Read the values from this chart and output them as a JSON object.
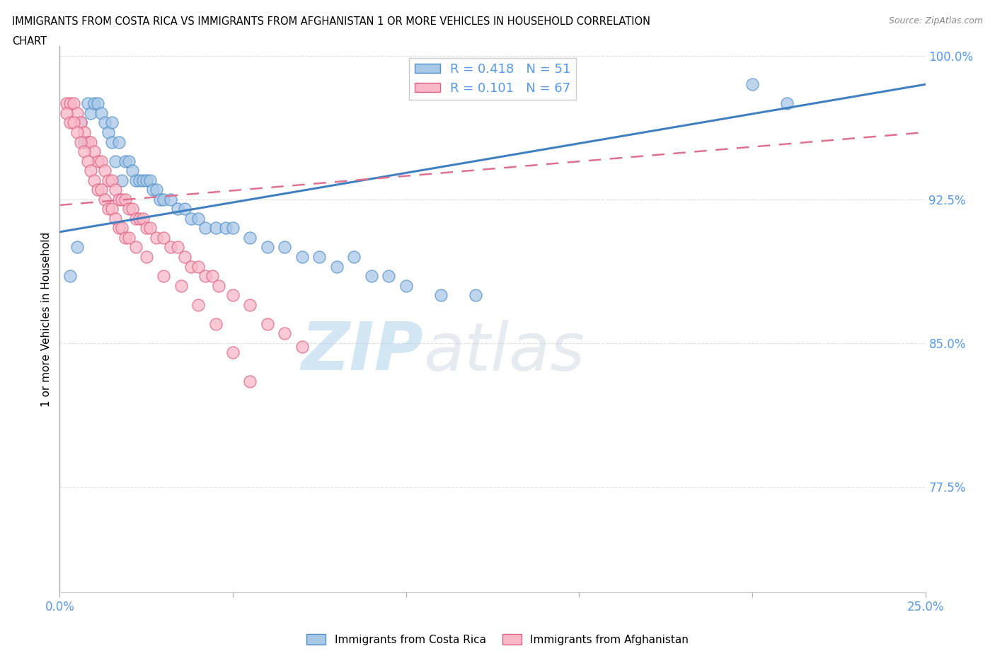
{
  "title_line1": "IMMIGRANTS FROM COSTA RICA VS IMMIGRANTS FROM AFGHANISTAN 1 OR MORE VEHICLES IN HOUSEHOLD CORRELATION",
  "title_line2": "CHART",
  "source": "Source: ZipAtlas.com",
  "ylabel": "1 or more Vehicles in Household",
  "xlim": [
    0.0,
    0.25
  ],
  "ylim": [
    0.72,
    1.005
  ],
  "yticks": [
    1.0,
    0.925,
    0.85,
    0.775
  ],
  "ytick_labels": [
    "100.0%",
    "92.5%",
    "85.0%",
    "77.5%"
  ],
  "xticks": [
    0.0,
    0.05,
    0.1,
    0.15,
    0.2,
    0.25
  ],
  "xtick_labels": [
    "0.0%",
    "",
    "",
    "",
    "",
    "25.0%"
  ],
  "blue_R": 0.418,
  "blue_N": 51,
  "pink_R": 0.101,
  "pink_N": 67,
  "blue_color": "#a8c8e8",
  "pink_color": "#f8b8c8",
  "blue_edge_color": "#5090c8",
  "pink_edge_color": "#e06080",
  "blue_line_color": "#4080c0",
  "pink_line_color": "#e07090",
  "legend_label_blue": "Immigrants from Costa Rica",
  "legend_label_pink": "Immigrants from Afghanistan",
  "watermark_zip": "ZIP",
  "watermark_atlas": "atlas",
  "background_color": "#ffffff",
  "tick_color": "#5599ee",
  "blue_trend_x0": 0.0,
  "blue_trend_x1": 0.25,
  "blue_trend_y0": 0.908,
  "blue_trend_y1": 0.985,
  "pink_trend_x0": 0.0,
  "pink_trend_x1": 0.25,
  "pink_trend_y0": 0.922,
  "pink_trend_y1": 0.96,
  "blue_scatter_x": [
    0.003,
    0.005,
    0.006,
    0.007,
    0.008,
    0.009,
    0.01,
    0.011,
    0.012,
    0.013,
    0.014,
    0.015,
    0.015,
    0.016,
    0.017,
    0.018,
    0.019,
    0.02,
    0.021,
    0.022,
    0.023,
    0.024,
    0.025,
    0.026,
    0.027,
    0.028,
    0.029,
    0.03,
    0.032,
    0.034,
    0.036,
    0.038,
    0.04,
    0.042,
    0.045,
    0.048,
    0.05,
    0.055,
    0.06,
    0.065,
    0.07,
    0.075,
    0.08,
    0.085,
    0.09,
    0.095,
    0.1,
    0.11,
    0.12,
    0.2,
    0.21
  ],
  "blue_scatter_y": [
    0.885,
    0.9,
    0.965,
    0.955,
    0.975,
    0.97,
    0.975,
    0.975,
    0.97,
    0.965,
    0.96,
    0.955,
    0.965,
    0.945,
    0.955,
    0.935,
    0.945,
    0.945,
    0.94,
    0.935,
    0.935,
    0.935,
    0.935,
    0.935,
    0.93,
    0.93,
    0.925,
    0.925,
    0.925,
    0.92,
    0.92,
    0.915,
    0.915,
    0.91,
    0.91,
    0.91,
    0.91,
    0.905,
    0.9,
    0.9,
    0.895,
    0.895,
    0.89,
    0.895,
    0.885,
    0.885,
    0.88,
    0.875,
    0.875,
    0.985,
    0.975
  ],
  "pink_scatter_x": [
    0.002,
    0.003,
    0.004,
    0.005,
    0.006,
    0.007,
    0.008,
    0.009,
    0.01,
    0.011,
    0.012,
    0.013,
    0.014,
    0.015,
    0.016,
    0.017,
    0.018,
    0.019,
    0.02,
    0.021,
    0.022,
    0.023,
    0.024,
    0.025,
    0.026,
    0.028,
    0.03,
    0.032,
    0.034,
    0.036,
    0.038,
    0.04,
    0.042,
    0.044,
    0.046,
    0.05,
    0.055,
    0.06,
    0.065,
    0.07,
    0.002,
    0.003,
    0.004,
    0.005,
    0.006,
    0.007,
    0.008,
    0.009,
    0.01,
    0.011,
    0.012,
    0.013,
    0.014,
    0.015,
    0.016,
    0.017,
    0.018,
    0.019,
    0.02,
    0.022,
    0.025,
    0.03,
    0.035,
    0.04,
    0.045,
    0.05,
    0.055
  ],
  "pink_scatter_y": [
    0.975,
    0.975,
    0.975,
    0.97,
    0.965,
    0.96,
    0.955,
    0.955,
    0.95,
    0.945,
    0.945,
    0.94,
    0.935,
    0.935,
    0.93,
    0.925,
    0.925,
    0.925,
    0.92,
    0.92,
    0.915,
    0.915,
    0.915,
    0.91,
    0.91,
    0.905,
    0.905,
    0.9,
    0.9,
    0.895,
    0.89,
    0.89,
    0.885,
    0.885,
    0.88,
    0.875,
    0.87,
    0.86,
    0.855,
    0.848,
    0.97,
    0.965,
    0.965,
    0.96,
    0.955,
    0.95,
    0.945,
    0.94,
    0.935,
    0.93,
    0.93,
    0.925,
    0.92,
    0.92,
    0.915,
    0.91,
    0.91,
    0.905,
    0.905,
    0.9,
    0.895,
    0.885,
    0.88,
    0.87,
    0.86,
    0.845,
    0.83
  ]
}
